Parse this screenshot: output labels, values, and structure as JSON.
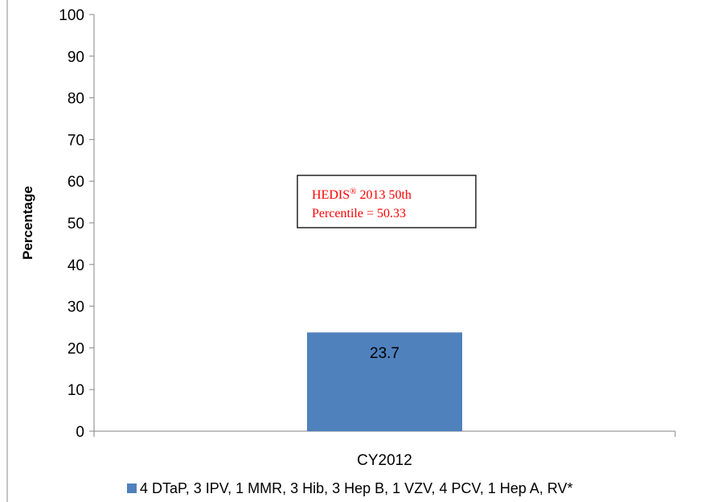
{
  "chart_data": {
    "type": "bar",
    "categories": [
      "CY2012"
    ],
    "series": [
      {
        "name": "4 DTaP, 3 IPV, 1 MMR, 3 Hib, 3 Hep B, 1 VZV, 4 PCV, 1 Hep A, RV*",
        "values": [
          23.7
        ],
        "color": "#4f81bd"
      }
    ],
    "ylabel": "Percentage",
    "xlabel": "",
    "ylim": [
      0,
      100
    ],
    "yticks": [
      "0",
      "10",
      "20",
      "30",
      "40",
      "50",
      "60",
      "70",
      "80",
      "90",
      "100"
    ],
    "data_labels": [
      "23.7"
    ],
    "grid": false,
    "legend_position": "bottom",
    "annotation": {
      "line1_prefix": "HEDIS",
      "line1_sup": "®",
      "line1_suffix": " 2013 50th",
      "line2": "Percentile = 50.33",
      "color": "#ff0000"
    }
  }
}
